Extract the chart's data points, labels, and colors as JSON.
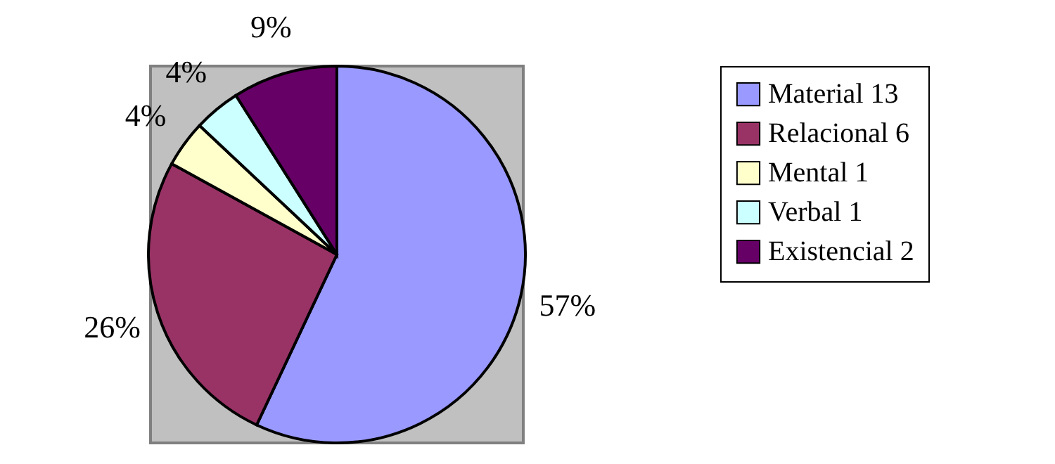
{
  "chart_data": {
    "type": "pie",
    "categories": [
      "Material 13",
      "Relacional 6",
      "Mental 1",
      "Verbal 1",
      "Existencial 2"
    ],
    "values": [
      57,
      26,
      4,
      4,
      9
    ],
    "colors": [
      "#9999ff",
      "#993366",
      "#ffffcc",
      "#ccffff",
      "#660066"
    ],
    "value_labels": [
      "57%",
      "26%",
      "4%",
      "4%",
      "9%"
    ],
    "legend": "right"
  }
}
